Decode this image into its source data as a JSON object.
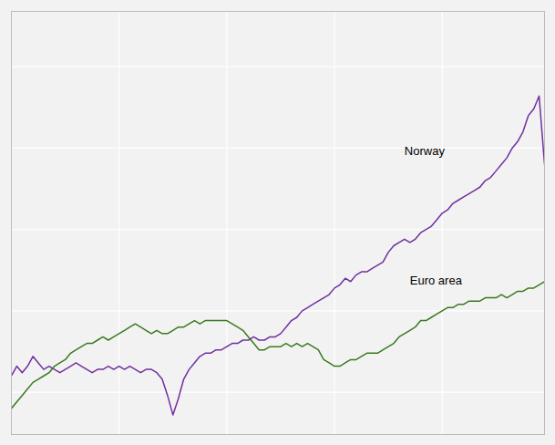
{
  "chart_data": {
    "type": "line",
    "x": [
      0,
      1,
      2,
      3,
      4,
      5,
      6,
      7,
      8,
      9,
      10,
      11,
      12,
      13,
      14,
      15,
      16,
      17,
      18,
      19,
      20,
      21,
      22,
      23,
      24,
      25,
      26,
      27,
      28,
      29,
      30,
      31,
      32,
      33,
      34,
      35,
      36,
      37,
      38,
      39,
      40,
      41,
      42,
      43,
      44,
      45,
      46,
      47,
      48,
      49,
      50,
      51,
      52,
      53,
      54,
      55,
      56,
      57,
      58,
      59,
      60,
      61,
      62,
      63,
      64,
      65,
      66,
      67,
      68,
      69,
      70,
      71,
      72,
      73,
      74,
      75,
      76,
      77,
      78,
      79,
      80,
      81,
      82,
      83,
      84,
      85,
      86,
      87,
      88,
      89,
      90,
      91,
      92,
      93,
      94,
      95,
      96,
      97,
      98,
      99
    ],
    "series": [
      {
        "name": "Norway",
        "color": "#7030a0",
        "values": [
          80,
          83,
          81,
          83,
          86,
          84,
          82,
          83,
          82,
          81,
          82,
          83,
          84,
          83,
          82,
          81,
          82,
          82,
          83,
          82,
          83,
          82,
          83,
          82,
          81,
          82,
          82,
          81,
          79,
          74,
          68,
          73,
          79,
          82,
          84,
          86,
          87,
          87,
          88,
          88,
          89,
          90,
          90,
          91,
          91,
          92,
          91,
          91,
          92,
          92,
          93,
          95,
          97,
          98,
          100,
          101,
          102,
          103,
          104,
          105,
          107,
          108,
          110,
          109,
          111,
          112,
          112,
          113,
          114,
          115,
          118,
          120,
          121,
          122,
          121,
          122,
          124,
          125,
          126,
          128,
          130,
          131,
          133,
          134,
          135,
          136,
          137,
          138,
          140,
          141,
          143,
          145,
          147,
          150,
          152,
          155,
          160,
          162,
          166,
          145
        ]
      },
      {
        "name": "Euro area",
        "color": "#3a7a1e",
        "values": [
          70,
          72,
          74,
          76,
          78,
          79,
          80,
          81,
          83,
          84,
          85,
          87,
          88,
          89,
          90,
          90,
          91,
          92,
          91,
          92,
          93,
          94,
          95,
          96,
          95,
          94,
          93,
          94,
          93,
          93,
          94,
          95,
          95,
          96,
          97,
          96,
          97,
          97,
          97,
          97,
          97,
          96,
          95,
          94,
          92,
          90,
          88,
          88,
          89,
          89,
          89,
          90,
          89,
          90,
          89,
          90,
          89,
          88,
          85,
          84,
          83,
          83,
          84,
          85,
          85,
          86,
          87,
          87,
          87,
          88,
          89,
          90,
          92,
          93,
          94,
          95,
          97,
          97,
          98,
          99,
          100,
          101,
          101,
          102,
          102,
          103,
          103,
          103,
          104,
          104,
          104,
          105,
          104,
          105,
          106,
          106,
          107,
          107,
          108,
          109
        ]
      }
    ],
    "annotations": [
      {
        "text": "Norway",
        "x": 73,
        "y": 148
      },
      {
        "text": "Euro area",
        "x": 74,
        "y": 108
      }
    ],
    "xlim": [
      0,
      99
    ],
    "xticks": [
      0,
      20,
      40,
      60,
      80
    ],
    "ylim": [
      62,
      192
    ],
    "yticks": [
      75,
      100,
      125,
      150,
      175
    ],
    "grid": true,
    "tick_labels": false
  }
}
